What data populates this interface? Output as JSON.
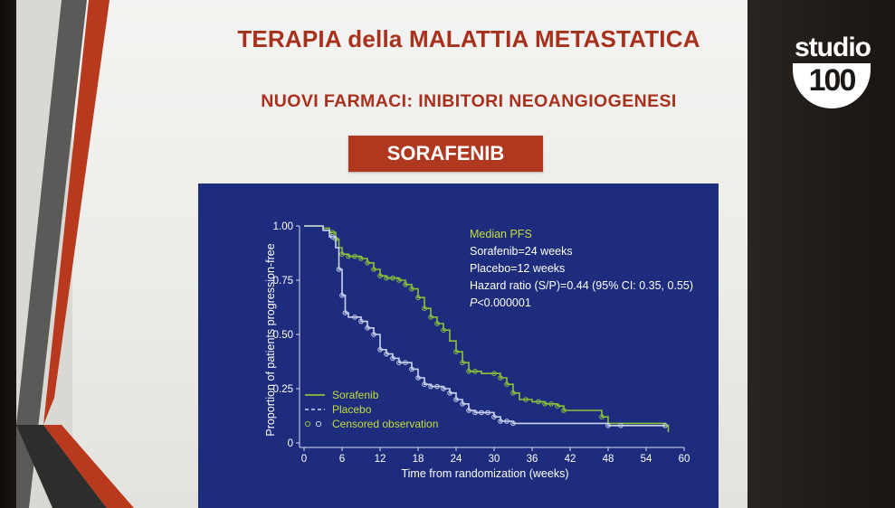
{
  "slide": {
    "title": "TERAPIA della MALATTIA METASTATICA",
    "subtitle": "NUOVI  FARMACI:  INIBITORI NEOANGIOGENESI",
    "banner": "SORAFENIB"
  },
  "logo": {
    "top": "studio",
    "bottom": "100"
  },
  "colors": {
    "slide_text": "#a8311d",
    "banner": "#b0381e",
    "chart_bg": "#1d2c7c",
    "sorafenib": "#8cc13a",
    "placebo": "#c9d3ee",
    "highlight": "#c6de3c"
  },
  "annotation": {
    "head": "Median PFS",
    "line1": "Sorafenib=24 weeks",
    "line2": "Placebo=12 weeks",
    "line3": "Hazard ratio (S/P)=0.44 (95% CI: 0.35, 0.55)",
    "line4_italic": "P",
    "line4_rest": "<0.000001"
  },
  "chart_data": {
    "type": "line",
    "xlabel": "Time from randomization (weeks)",
    "ylabel": "Proportion of patients progression-free",
    "xlim": [
      0,
      60
    ],
    "ylim": [
      0,
      1
    ],
    "x_ticks": [
      "0",
      "6",
      "12",
      "18",
      "24",
      "30",
      "36",
      "42",
      "48",
      "54",
      "60"
    ],
    "y_ticks": [
      "0",
      "0.25",
      "0.50",
      "0.75",
      "1.00"
    ],
    "legend": {
      "placement": "bottom-left",
      "items": [
        {
          "label": "Sorafenib",
          "style": "solid"
        },
        {
          "label": "Placebo",
          "style": "dashed"
        },
        {
          "label": "Censored observation",
          "style": "circles"
        }
      ]
    },
    "series": [
      {
        "name": "Sorafenib",
        "step": [
          [
            0,
            1.0
          ],
          [
            3,
            0.99
          ],
          [
            4,
            0.97
          ],
          [
            5,
            0.94
          ],
          [
            5.5,
            0.9
          ],
          [
            6,
            0.87
          ],
          [
            7,
            0.86
          ],
          [
            9,
            0.85
          ],
          [
            10,
            0.83
          ],
          [
            11,
            0.8
          ],
          [
            12,
            0.77
          ],
          [
            13,
            0.76
          ],
          [
            15,
            0.75
          ],
          [
            16,
            0.73
          ],
          [
            17,
            0.71
          ],
          [
            18,
            0.67
          ],
          [
            19,
            0.62
          ],
          [
            20,
            0.58
          ],
          [
            21,
            0.55
          ],
          [
            22,
            0.52
          ],
          [
            23,
            0.47
          ],
          [
            24,
            0.42
          ],
          [
            25,
            0.37
          ],
          [
            26,
            0.33
          ],
          [
            28,
            0.32
          ],
          [
            31,
            0.3
          ],
          [
            32,
            0.27
          ],
          [
            33,
            0.23
          ],
          [
            34,
            0.2
          ],
          [
            36,
            0.19
          ],
          [
            38,
            0.18
          ],
          [
            40,
            0.17
          ],
          [
            41,
            0.15
          ],
          [
            46,
            0.15
          ],
          [
            47,
            0.12
          ],
          [
            48,
            0.09
          ],
          [
            57,
            0.08
          ],
          [
            57.5,
            0.05
          ]
        ],
        "censored_x": [
          4.5,
          5,
          6,
          7,
          8,
          9,
          10,
          11,
          12,
          13,
          14,
          15,
          16,
          17,
          18,
          19,
          20,
          21,
          22,
          24,
          25,
          26,
          27,
          30,
          31,
          32,
          33,
          35,
          37,
          38,
          39,
          40,
          41,
          47,
          57
        ]
      },
      {
        "name": "Placebo",
        "step": [
          [
            0,
            1.0
          ],
          [
            3,
            0.98
          ],
          [
            4,
            0.95
          ],
          [
            5,
            0.9
          ],
          [
            5.5,
            0.8
          ],
          [
            6,
            0.68
          ],
          [
            6.5,
            0.6
          ],
          [
            7,
            0.58
          ],
          [
            9,
            0.56
          ],
          [
            10,
            0.53
          ],
          [
            11,
            0.5
          ],
          [
            12,
            0.43
          ],
          [
            13,
            0.41
          ],
          [
            14,
            0.39
          ],
          [
            15,
            0.37
          ],
          [
            17,
            0.34
          ],
          [
            18,
            0.3
          ],
          [
            19,
            0.27
          ],
          [
            20,
            0.26
          ],
          [
            22,
            0.25
          ],
          [
            23,
            0.23
          ],
          [
            24,
            0.2
          ],
          [
            25,
            0.18
          ],
          [
            26,
            0.15
          ],
          [
            27,
            0.14
          ],
          [
            30,
            0.12
          ],
          [
            31,
            0.1
          ],
          [
            33,
            0.09
          ],
          [
            48,
            0.08
          ],
          [
            57,
            0.08
          ]
        ],
        "censored_x": [
          4.5,
          5.5,
          6,
          6.5,
          8,
          9,
          10,
          11,
          12,
          13,
          14,
          15,
          16,
          17,
          18,
          19,
          20,
          21,
          22,
          23,
          24,
          25,
          26,
          27,
          28,
          29,
          30,
          31,
          32,
          33,
          48,
          50,
          57
        ]
      }
    ]
  }
}
